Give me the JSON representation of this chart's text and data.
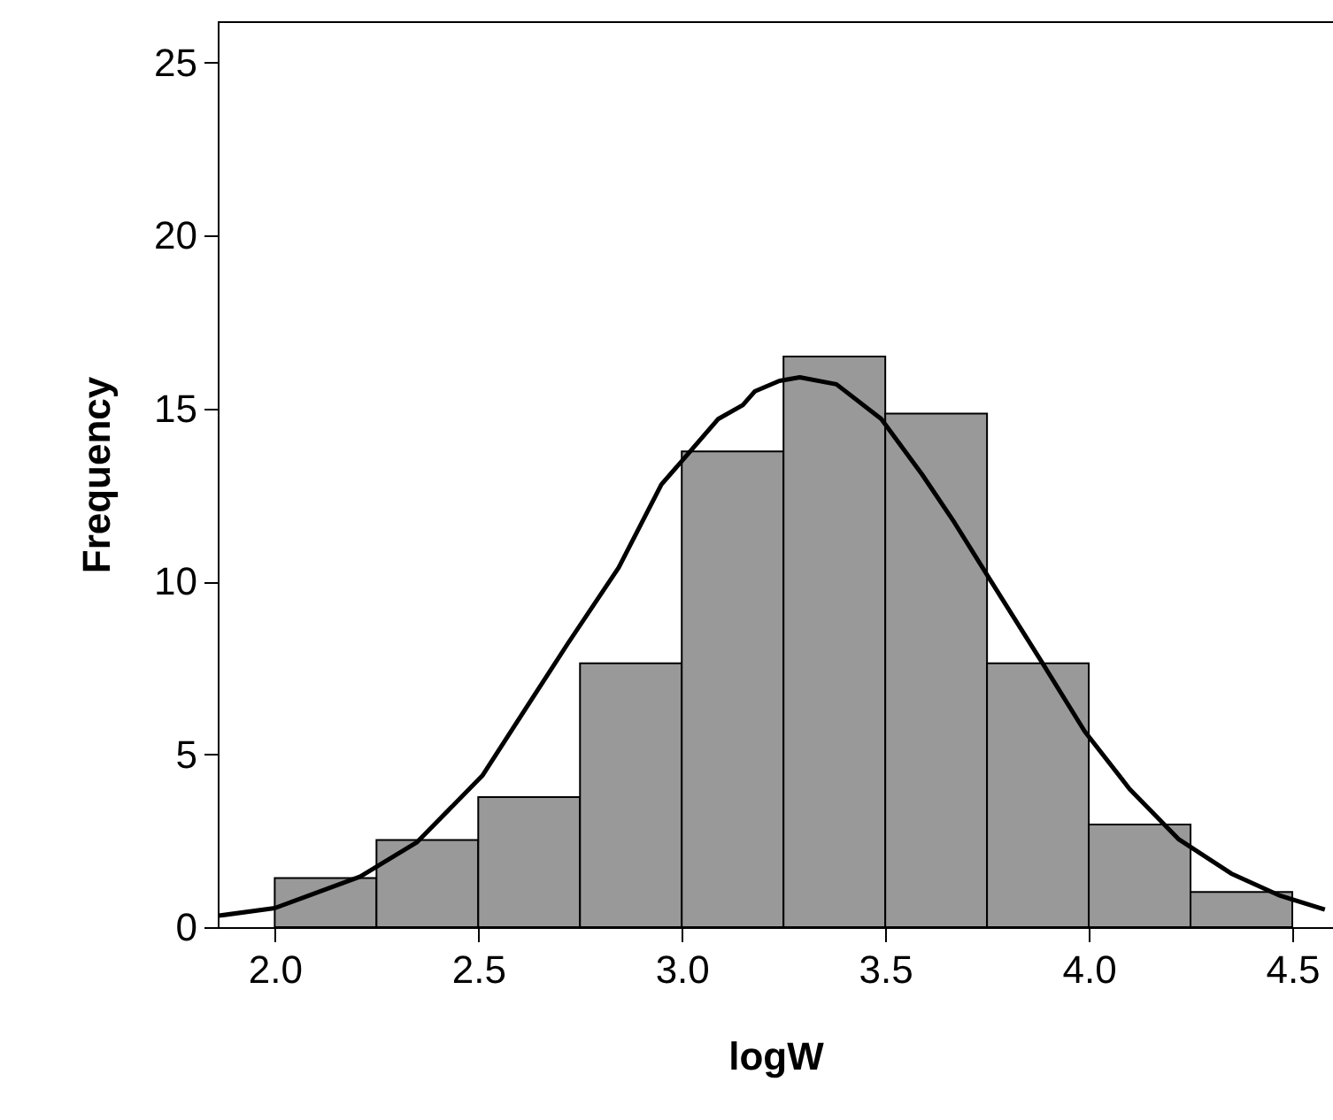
{
  "chart_data": {
    "type": "histogram",
    "xlabel": "logW",
    "ylabel": "Frequency",
    "bins": [
      2.0,
      2.25,
      2.5,
      2.75,
      3.0,
      3.25,
      3.5,
      3.75,
      4.0,
      4.25,
      4.5
    ],
    "values": [
      1.42,
      2.52,
      3.76,
      7.63,
      13.76,
      16.5,
      14.85,
      7.63,
      2.97,
      1.02
    ],
    "color": "#999999",
    "series": [
      {
        "type": "line",
        "color": "#000000",
        "x": [
          1.862,
          2.0,
          2.21,
          2.35,
          2.51,
          2.61,
          2.72,
          2.845,
          2.95,
          3.09,
          3.15,
          3.18,
          3.24,
          3.29,
          3.38,
          3.49,
          3.59,
          3.67,
          3.76,
          3.885,
          3.99,
          4.1,
          4.22,
          4.35,
          4.47,
          4.58
        ],
        "values": [
          0.33,
          0.55,
          1.46,
          2.46,
          4.38,
          6.2,
          8.2,
          10.4,
          12.8,
          14.7,
          15.1,
          15.5,
          15.8,
          15.9,
          15.7,
          14.7,
          13.1,
          11.7,
          10.0,
          7.66,
          5.66,
          4.0,
          2.55,
          1.55,
          0.91,
          0.51
        ]
      }
    ],
    "xlim": [
      1.86,
      4.6
    ],
    "xticks": [
      {
        "value": 2.0,
        "label": "2.0"
      },
      {
        "value": 2.5,
        "label": "2.5"
      },
      {
        "value": 3.0,
        "label": "3.0"
      },
      {
        "value": 3.5,
        "label": "3.5"
      },
      {
        "value": 4.0,
        "label": "4.0"
      },
      {
        "value": 4.5,
        "label": "4.5"
      }
    ],
    "ylim": [
      0,
      26.2
    ],
    "yticks": [
      0,
      5,
      10,
      15,
      20,
      25
    ],
    "grid": false,
    "line_style": "solid"
  }
}
